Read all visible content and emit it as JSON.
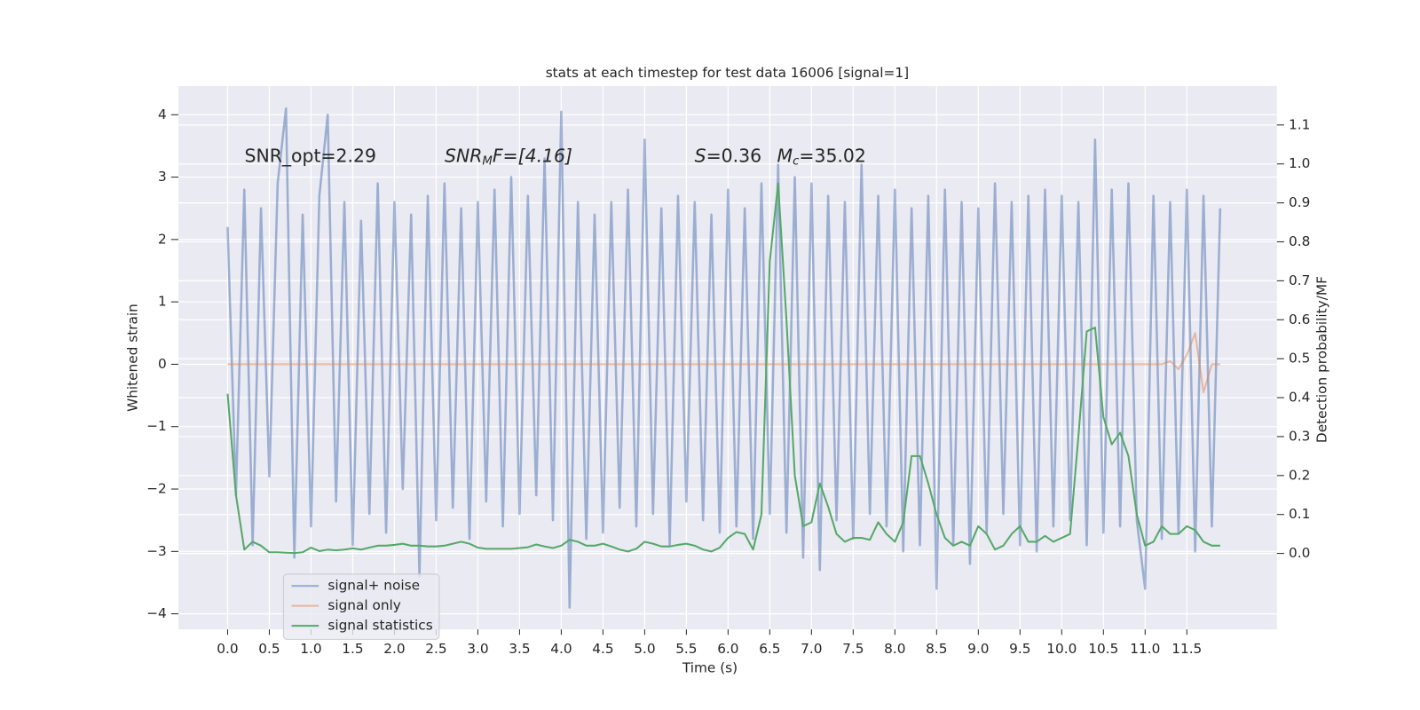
{
  "chart_data": {
    "type": "line",
    "title": "stats at each timestep for test data 16006 [signal=1]",
    "xlabel": "Time (s)",
    "ylabel": "Whitened strain",
    "y2label": "Detection probability/MF",
    "annotations": [
      [
        "SNR_opt=2.29"
      ],
      [
        "SNR",
        "M",
        "F=[4.16]"
      ],
      [
        "S",
        "=0.36"
      ],
      [
        "M",
        "c",
        "=35.02"
      ]
    ],
    "grid": true,
    "legend_loc": "lower left",
    "xlim": [
      -0.59,
      12.58
    ],
    "ylim": [
      -4.25,
      4.46
    ],
    "y2lim": [
      -0.195,
      1.2
    ],
    "xticks": [
      {
        "value": 0,
        "label": "0.0"
      },
      {
        "value": 0.5,
        "label": "0.5"
      },
      {
        "value": 1,
        "label": "1.0"
      },
      {
        "value": 1.5,
        "label": "1.5"
      },
      {
        "value": 2,
        "label": "2.0"
      },
      {
        "value": 2.5,
        "label": "2.5"
      },
      {
        "value": 3,
        "label": "3.0"
      },
      {
        "value": 3.5,
        "label": "3.5"
      },
      {
        "value": 4,
        "label": "4.0"
      },
      {
        "value": 4.5,
        "label": "4.5"
      },
      {
        "value": 5,
        "label": "5.0"
      },
      {
        "value": 5.5,
        "label": "5.5"
      },
      {
        "value": 6,
        "label": "6.0"
      },
      {
        "value": 6.5,
        "label": "6.5"
      },
      {
        "value": 7,
        "label": "7.0"
      },
      {
        "value": 7.5,
        "label": "7.5"
      },
      {
        "value": 8,
        "label": "8.0"
      },
      {
        "value": 8.5,
        "label": "8.5"
      },
      {
        "value": 9,
        "label": "9.0"
      },
      {
        "value": 9.5,
        "label": "9.5"
      },
      {
        "value": 10,
        "label": "10.0"
      },
      {
        "value": 10.5,
        "label": "10.5"
      },
      {
        "value": 11,
        "label": "11.0"
      },
      {
        "value": 11.5,
        "label": "11.5"
      }
    ],
    "yticks": [
      {
        "value": -4,
        "label": "−4"
      },
      {
        "value": -3,
        "label": "−3"
      },
      {
        "value": -2,
        "label": "−2"
      },
      {
        "value": -1,
        "label": "−1"
      },
      0,
      1,
      2,
      3,
      4
    ],
    "y2ticks": [
      {
        "value": 0,
        "label": "0.0"
      },
      {
        "value": 0.1,
        "label": "0.1"
      },
      {
        "value": 0.2,
        "label": "0.2"
      },
      {
        "value": 0.3,
        "label": "0.3"
      },
      {
        "value": 0.4,
        "label": "0.4"
      },
      {
        "value": 0.5,
        "label": "0.5"
      },
      {
        "value": 0.6,
        "label": "0.6"
      },
      {
        "value": 0.7,
        "label": "0.7"
      },
      {
        "value": 0.8,
        "label": "0.8"
      },
      {
        "value": 0.9,
        "label": "0.9"
      },
      {
        "value": 1,
        "label": "1.0"
      },
      {
        "value": 1.1,
        "label": "1.1"
      }
    ],
    "x": [
      0,
      0.1,
      0.2,
      0.3,
      0.4,
      0.5,
      0.6,
      0.7,
      0.8,
      0.9,
      1,
      1.1,
      1.2,
      1.3,
      1.4,
      1.5,
      1.6,
      1.7,
      1.8,
      1.9,
      2,
      2.1,
      2.2,
      2.3,
      2.4,
      2.5,
      2.6,
      2.7,
      2.8,
      2.9,
      3,
      3.1,
      3.2,
      3.3,
      3.4,
      3.5,
      3.6,
      3.7,
      3.8,
      3.9,
      4,
      4.1,
      4.2,
      4.3,
      4.4,
      4.5,
      4.6,
      4.7,
      4.8,
      4.9,
      5,
      5.1,
      5.2,
      5.3,
      5.4,
      5.5,
      5.6,
      5.7,
      5.8,
      5.9,
      6,
      6.1,
      6.2,
      6.3,
      6.4,
      6.5,
      6.6,
      6.7,
      6.8,
      6.9,
      7,
      7.1,
      7.2,
      7.3,
      7.4,
      7.5,
      7.6,
      7.7,
      7.8,
      7.9,
      8,
      8.1,
      8.2,
      8.3,
      8.4,
      8.5,
      8.6,
      8.7,
      8.8,
      8.9,
      9,
      9.1,
      9.2,
      9.3,
      9.4,
      9.5,
      9.6,
      9.7,
      9.8,
      9.9,
      10,
      10.1,
      10.2,
      10.3,
      10.4,
      10.5,
      10.6,
      10.7,
      10.8,
      10.9,
      11,
      11.1,
      11.2,
      11.3,
      11.4,
      11.5,
      11.6,
      11.7,
      11.8,
      11.9
    ],
    "series": [
      {
        "name": "signal+ noise",
        "color": "#4c72b0",
        "opacity": 0.5,
        "values": [
          2.2,
          -2.1,
          2.8,
          -2.9,
          2.5,
          -1.8,
          2.9,
          4.1,
          -3.1,
          2.4,
          -2.6,
          2.7,
          4.0,
          -2.2,
          2.6,
          -2.9,
          2.3,
          -2.4,
          2.9,
          -2.7,
          2.6,
          -2.0,
          2.4,
          -3.4,
          2.7,
          -2.5,
          2.9,
          -2.3,
          2.5,
          -2.8,
          2.6,
          -2.2,
          2.8,
          -2.6,
          3.0,
          -2.4,
          2.7,
          -2.1,
          3.3,
          -2.5,
          4.05,
          -3.9,
          2.6,
          -2.8,
          2.4,
          -2.7,
          2.6,
          -2.3,
          2.8,
          -2.6,
          3.6,
          -2.4,
          2.5,
          -2.9,
          2.7,
          -2.2,
          2.6,
          -2.5,
          2.4,
          -2.7,
          2.8,
          -2.6,
          2.5,
          -2.8,
          2.9,
          -2.4,
          3.2,
          -2.7,
          3.0,
          -3.1,
          2.9,
          -3.3,
          2.7,
          -2.5,
          2.6,
          -2.8,
          3.2,
          -2.4,
          2.7,
          -2.6,
          2.8,
          -3.0,
          2.5,
          -2.9,
          2.7,
          -3.6,
          2.8,
          -2.9,
          2.6,
          -3.2,
          2.5,
          -2.7,
          2.9,
          -2.4,
          2.6,
          -2.9,
          2.7,
          -3.0,
          2.8,
          -2.6,
          2.7,
          -2.5,
          2.6,
          -2.9,
          3.6,
          -2.7,
          2.8,
          -2.6,
          2.9,
          -2.5,
          -3.6,
          2.7,
          -2.8,
          2.6,
          -2.7,
          2.8,
          -3.0,
          2.7,
          -2.6,
          2.5
        ]
      },
      {
        "name": "signal only",
        "color": "#dd8452",
        "opacity": 0.5,
        "values": [
          0,
          0,
          0,
          0,
          0,
          0,
          0,
          0,
          0,
          0,
          0,
          0,
          0,
          0,
          0,
          0,
          0,
          0,
          0,
          0,
          0,
          0,
          0,
          0,
          0,
          0,
          0,
          0,
          0,
          0,
          0,
          0,
          0,
          0,
          0,
          0,
          0,
          0,
          0,
          0,
          0,
          0,
          0,
          0,
          0,
          0,
          0,
          0,
          0,
          0,
          0,
          0,
          0,
          0,
          0,
          0,
          0,
          0,
          0,
          0,
          0,
          0,
          0,
          0,
          0,
          0,
          0,
          0,
          0,
          0,
          0,
          0,
          0,
          0,
          0,
          0,
          0,
          0,
          0,
          0,
          0,
          0,
          0,
          0,
          0,
          0,
          0,
          0,
          0,
          0,
          0,
          0,
          0,
          0,
          0,
          0,
          0,
          0,
          0,
          0,
          0,
          0,
          0,
          0,
          0,
          0,
          0,
          0,
          0,
          0,
          0,
          0,
          0,
          0.05,
          -0.08,
          0.15,
          0.5,
          -0.45,
          0,
          0
        ]
      },
      {
        "name": "signal statistics",
        "color": "#55a868",
        "opacity": 1,
        "axis": "y2",
        "values": [
          0.41,
          0.15,
          0.01,
          0.03,
          0.02,
          0.003,
          0.003,
          0.002,
          0.001,
          0.003,
          0.015,
          0.006,
          0.01,
          0.008,
          0.01,
          0.013,
          0.01,
          0.015,
          0.02,
          0.02,
          0.022,
          0.025,
          0.02,
          0.02,
          0.018,
          0.018,
          0.02,
          0.025,
          0.03,
          0.025,
          0.015,
          0.012,
          0.012,
          0.012,
          0.012,
          0.014,
          0.016,
          0.023,
          0.018,
          0.014,
          0.02,
          0.035,
          0.03,
          0.02,
          0.02,
          0.025,
          0.018,
          0.01,
          0.005,
          0.012,
          0.03,
          0.025,
          0.018,
          0.018,
          0.022,
          0.025,
          0.02,
          0.01,
          0.005,
          0.015,
          0.04,
          0.055,
          0.05,
          0.01,
          0.1,
          0.75,
          0.95,
          0.6,
          0.2,
          0.07,
          0.08,
          0.18,
          0.12,
          0.05,
          0.03,
          0.04,
          0.04,
          0.035,
          0.08,
          0.05,
          0.03,
          0.08,
          0.25,
          0.25,
          0.18,
          0.1,
          0.04,
          0.02,
          0.03,
          0.02,
          0.07,
          0.05,
          0.01,
          0.02,
          0.05,
          0.07,
          0.03,
          0.03,
          0.045,
          0.03,
          0.04,
          0.05,
          0.3,
          0.57,
          0.58,
          0.35,
          0.28,
          0.31,
          0.25,
          0.1,
          0.02,
          0.03,
          0.07,
          0.05,
          0.05,
          0.07,
          0.06,
          0.03,
          0.02,
          0.02
        ]
      }
    ]
  }
}
